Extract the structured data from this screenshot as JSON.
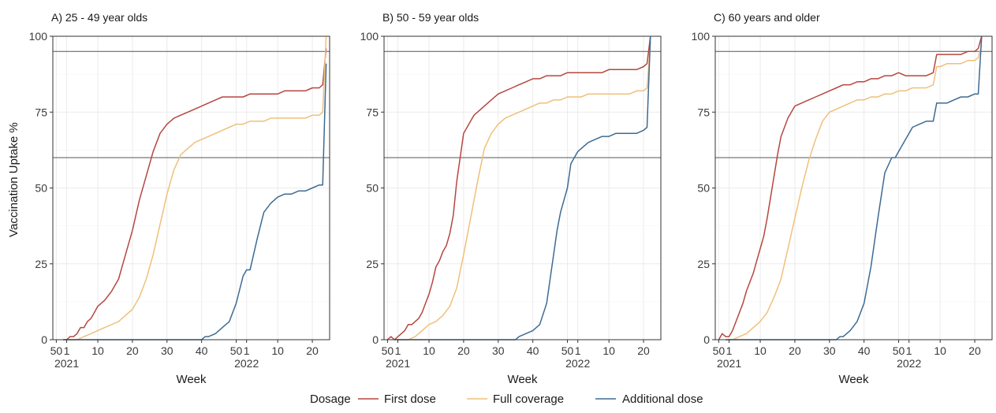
{
  "chart_data": {
    "type": "line",
    "ylabel": "Vaccination Uptake %",
    "xlabel": "Week",
    "ylim": [
      0,
      100
    ],
    "y_ticks": [
      0,
      25,
      50,
      75,
      100
    ],
    "x_tick_labels": [
      "50",
      "1",
      "10",
      "20",
      "30",
      "40",
      "50",
      "1",
      "10",
      "20"
    ],
    "x_year_labels": [
      "2021",
      "2022"
    ],
    "reference_lines": [
      95,
      60
    ],
    "grid": true,
    "legend": {
      "title": "Dosage",
      "position": "bottom",
      "entries": [
        "First dose",
        "Full coverage",
        "Additional dose"
      ]
    },
    "colors": {
      "first": "#b5473f",
      "full": "#efc07a",
      "additional": "#3d6b93",
      "refline": "#555555",
      "grid": "#ebebeb",
      "frame": "#333333"
    },
    "panels": [
      {
        "title": "A) 25 - 49 year olds",
        "x_tick_values": [
          -2,
          1,
          10,
          20,
          30,
          40,
          50,
          53,
          62,
          72
        ],
        "series": [
          {
            "name": "First dose",
            "x": [
              0,
              1,
              2,
              3,
              4,
              5,
              6,
              7,
              8,
              9,
              10,
              12,
              14,
              16,
              18,
              20,
              22,
              24,
              26,
              28,
              30,
              32,
              34,
              36,
              38,
              40,
              42,
              44,
              46,
              48,
              50,
              52,
              54,
              56,
              58,
              60,
              62,
              64,
              66,
              68,
              70,
              72,
              74,
              75,
              76
            ],
            "y": [
              0,
              0,
              1,
              1,
              2,
              4,
              4,
              6,
              7,
              9,
              11,
              13,
              16,
              20,
              28,
              36,
              46,
              54,
              62,
              68,
              71,
              73,
              74,
              75,
              76,
              77,
              78,
              79,
              80,
              80,
              80,
              80,
              81,
              81,
              81,
              81,
              81,
              82,
              82,
              82,
              82,
              83,
              83,
              84,
              96
            ]
          },
          {
            "name": "Full coverage",
            "x": [
              0,
              2,
              4,
              6,
              8,
              10,
              12,
              14,
              16,
              18,
              20,
              22,
              24,
              26,
              28,
              30,
              32,
              34,
              36,
              38,
              40,
              42,
              44,
              46,
              48,
              50,
              52,
              54,
              56,
              58,
              60,
              62,
              64,
              66,
              68,
              70,
              72,
              74,
              75,
              76
            ],
            "y": [
              0,
              0,
              0,
              1,
              2,
              3,
              4,
              5,
              6,
              8,
              10,
              14,
              20,
              28,
              38,
              48,
              56,
              61,
              63,
              65,
              66,
              67,
              68,
              69,
              70,
              71,
              71,
              72,
              72,
              72,
              73,
              73,
              73,
              73,
              73,
              73,
              74,
              74,
              75,
              100
            ]
          },
          {
            "name": "Additional dose",
            "x": [
              0,
              10,
              20,
              30,
              40,
              41,
              42,
              44,
              46,
              48,
              50,
              52,
              53,
              54,
              56,
              58,
              60,
              62,
              64,
              66,
              68,
              70,
              72,
              74,
              75,
              76
            ],
            "y": [
              0,
              0,
              0,
              0,
              0,
              1,
              1,
              2,
              4,
              6,
              12,
              21,
              23,
              23,
              33,
              42,
              45,
              47,
              48,
              48,
              49,
              49,
              50,
              51,
              51,
              91
            ]
          }
        ]
      },
      {
        "title": "B) 50 - 59 year olds",
        "x_tick_values": [
          -2,
          1,
          10,
          20,
          30,
          40,
          50,
          53,
          62,
          72
        ],
        "series": [
          {
            "name": "First dose",
            "x": [
              -2,
              -1,
              0,
              1,
              2,
              3,
              4,
              5,
              6,
              7,
              8,
              9,
              10,
              11,
              12,
              13,
              14,
              15,
              16,
              17,
              18,
              19,
              20,
              21,
              22,
              23,
              24,
              26,
              28,
              30,
              32,
              34,
              36,
              38,
              40,
              42,
              44,
              46,
              48,
              50,
              52,
              54,
              56,
              58,
              60,
              62,
              64,
              66,
              68,
              70,
              72,
              73,
              74
            ],
            "y": [
              0,
              1,
              0,
              1,
              2,
              3,
              5,
              5,
              6,
              7,
              9,
              12,
              15,
              19,
              24,
              26,
              29,
              31,
              35,
              41,
              52,
              60,
              68,
              70,
              72,
              74,
              75,
              77,
              79,
              81,
              82,
              83,
              84,
              85,
              86,
              86,
              87,
              87,
              87,
              88,
              88,
              88,
              88,
              88,
              88,
              89,
              89,
              89,
              89,
              89,
              90,
              91,
              100
            ]
          },
          {
            "name": "Full coverage",
            "x": [
              0,
              2,
              4,
              6,
              8,
              10,
              12,
              14,
              16,
              18,
              20,
              22,
              24,
              26,
              28,
              30,
              32,
              34,
              36,
              38,
              40,
              42,
              44,
              46,
              48,
              50,
              52,
              54,
              56,
              58,
              60,
              62,
              64,
              66,
              68,
              70,
              72,
              73,
              74
            ],
            "y": [
              0,
              0,
              0,
              1,
              3,
              5,
              6,
              8,
              11,
              17,
              28,
              40,
              52,
              63,
              68,
              71,
              73,
              74,
              75,
              76,
              77,
              78,
              78,
              79,
              79,
              80,
              80,
              80,
              81,
              81,
              81,
              81,
              81,
              81,
              81,
              82,
              82,
              83,
              98
            ]
          },
          {
            "name": "Additional dose",
            "x": [
              0,
              10,
              20,
              30,
              35,
              36,
              38,
              40,
              42,
              44,
              46,
              47,
              48,
              50,
              51,
              52,
              53,
              54,
              56,
              58,
              60,
              62,
              64,
              66,
              68,
              70,
              72,
              73,
              74
            ],
            "y": [
              0,
              0,
              0,
              0,
              0,
              1,
              2,
              3,
              5,
              12,
              28,
              36,
              42,
              50,
              58,
              60,
              62,
              63,
              65,
              66,
              67,
              67,
              68,
              68,
              68,
              68,
              69,
              70,
              100
            ]
          }
        ]
      },
      {
        "title": "C) 60 years and older",
        "x_tick_values": [
          -2,
          1,
          10,
          20,
          30,
          40,
          50,
          53,
          62,
          72
        ],
        "series": [
          {
            "name": "First dose",
            "x": [
              -2,
              -1,
              0,
              1,
              2,
              3,
              4,
              5,
              6,
              7,
              8,
              9,
              10,
              11,
              12,
              13,
              14,
              15,
              16,
              17,
              18,
              19,
              20,
              22,
              24,
              26,
              28,
              30,
              32,
              34,
              36,
              38,
              40,
              42,
              44,
              46,
              48,
              50,
              52,
              54,
              56,
              58,
              60,
              61,
              62,
              64,
              66,
              68,
              70,
              72,
              73,
              74
            ],
            "y": [
              0,
              2,
              1,
              1,
              3,
              6,
              9,
              12,
              16,
              19,
              22,
              26,
              30,
              34,
              40,
              47,
              54,
              61,
              67,
              70,
              73,
              75,
              77,
              78,
              79,
              80,
              81,
              82,
              83,
              84,
              84,
              85,
              85,
              86,
              86,
              87,
              87,
              88,
              87,
              87,
              87,
              87,
              88,
              94,
              94,
              94,
              94,
              94,
              95,
              95,
              96,
              100
            ]
          },
          {
            "name": "Full coverage",
            "x": [
              0,
              2,
              4,
              6,
              8,
              10,
              12,
              14,
              16,
              18,
              20,
              22,
              24,
              26,
              28,
              30,
              32,
              34,
              36,
              38,
              40,
              42,
              44,
              46,
              48,
              50,
              52,
              54,
              56,
              58,
              60,
              61,
              62,
              64,
              66,
              68,
              70,
              72,
              73,
              74
            ],
            "y": [
              0,
              0,
              1,
              2,
              4,
              6,
              9,
              14,
              20,
              30,
              40,
              50,
              59,
              66,
              72,
              75,
              76,
              77,
              78,
              79,
              79,
              80,
              80,
              81,
              81,
              82,
              82,
              83,
              83,
              83,
              84,
              90,
              90,
              91,
              91,
              91,
              92,
              92,
              93,
              97
            ]
          },
          {
            "name": "Additional dose",
            "x": [
              0,
              10,
              20,
              30,
              32,
              33,
              34,
              36,
              38,
              40,
              42,
              44,
              46,
              48,
              49,
              50,
              51,
              52,
              53,
              54,
              56,
              58,
              60,
              61,
              62,
              64,
              66,
              68,
              70,
              72,
              73,
              74
            ],
            "y": [
              0,
              0,
              0,
              0,
              0,
              1,
              1,
              3,
              6,
              12,
              24,
              40,
              55,
              60,
              60,
              62,
              64,
              66,
              68,
              70,
              71,
              72,
              72,
              78,
              78,
              78,
              79,
              80,
              80,
              81,
              81,
              100
            ]
          }
        ]
      }
    ]
  }
}
